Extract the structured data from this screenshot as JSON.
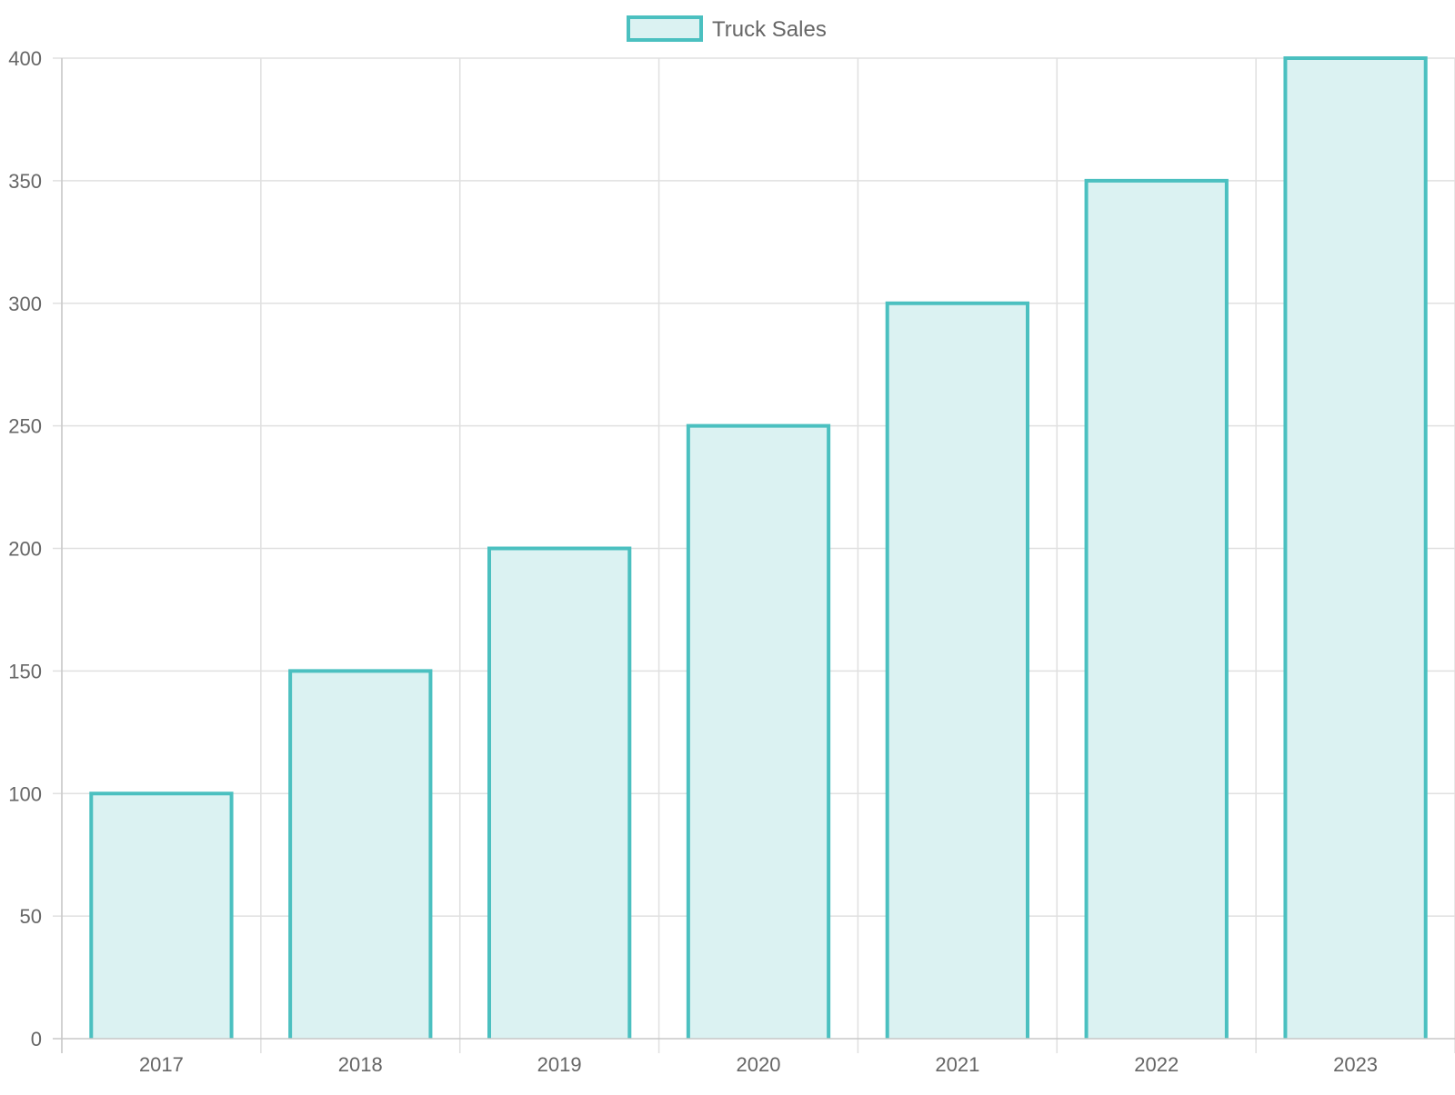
{
  "chart_data": {
    "type": "bar",
    "categories": [
      "2017",
      "2018",
      "2019",
      "2020",
      "2021",
      "2022",
      "2023"
    ],
    "series": [
      {
        "name": "Truck Sales",
        "values": [
          100,
          150,
          200,
          250,
          300,
          350,
          400
        ]
      }
    ],
    "ylim": [
      0,
      400
    ],
    "yticks": [
      "0",
      "50",
      "100",
      "150",
      "200",
      "250",
      "300",
      "350",
      "400"
    ],
    "grid": true,
    "legend_position": "top-center",
    "colors": {
      "bar_border": "#4bc0c0",
      "bar_fill": "#dbf2f2",
      "grid": "#e0e0e0",
      "axis": "#c8c8c8",
      "text": "#666666"
    }
  }
}
